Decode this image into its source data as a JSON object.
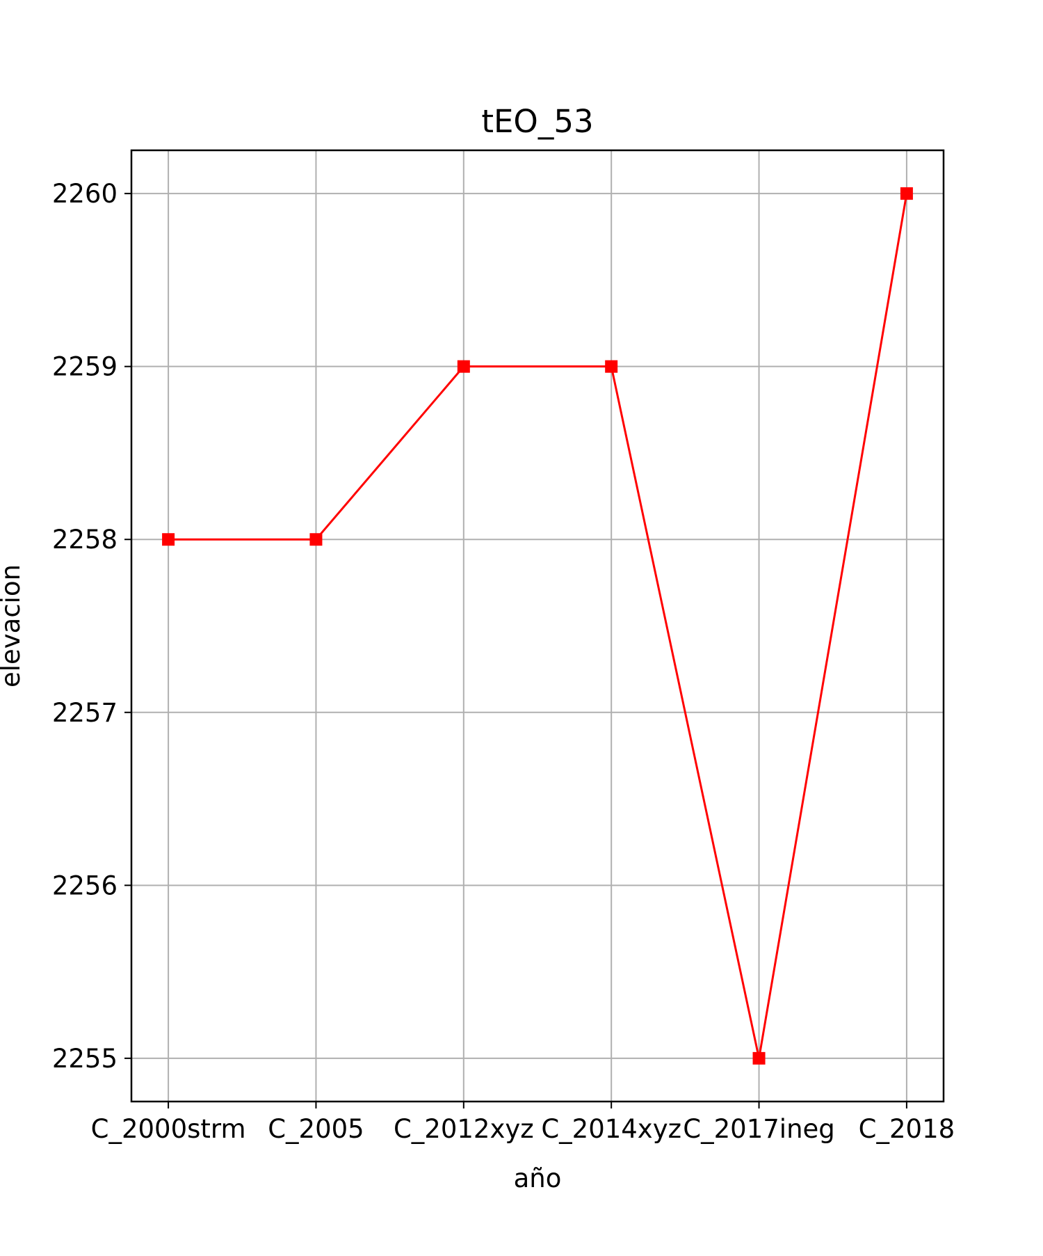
{
  "chart_data": {
    "type": "line",
    "title": "tEO_53",
    "xlabel": "año",
    "ylabel": "elevacion",
    "categories": [
      "C_2000strm",
      "C_2005",
      "C_2012xyz",
      "C_2014xyz",
      "C_2017ineg",
      "C_2018"
    ],
    "series": [
      {
        "values": [
          2258,
          2258,
          2259,
          2259,
          2255,
          2260
        ],
        "color": "#ff0000",
        "marker": "square"
      }
    ],
    "yticks": [
      2255,
      2256,
      2257,
      2258,
      2259,
      2260
    ],
    "ylim": [
      2254.75,
      2260.25
    ],
    "grid": true,
    "legend": "none"
  }
}
